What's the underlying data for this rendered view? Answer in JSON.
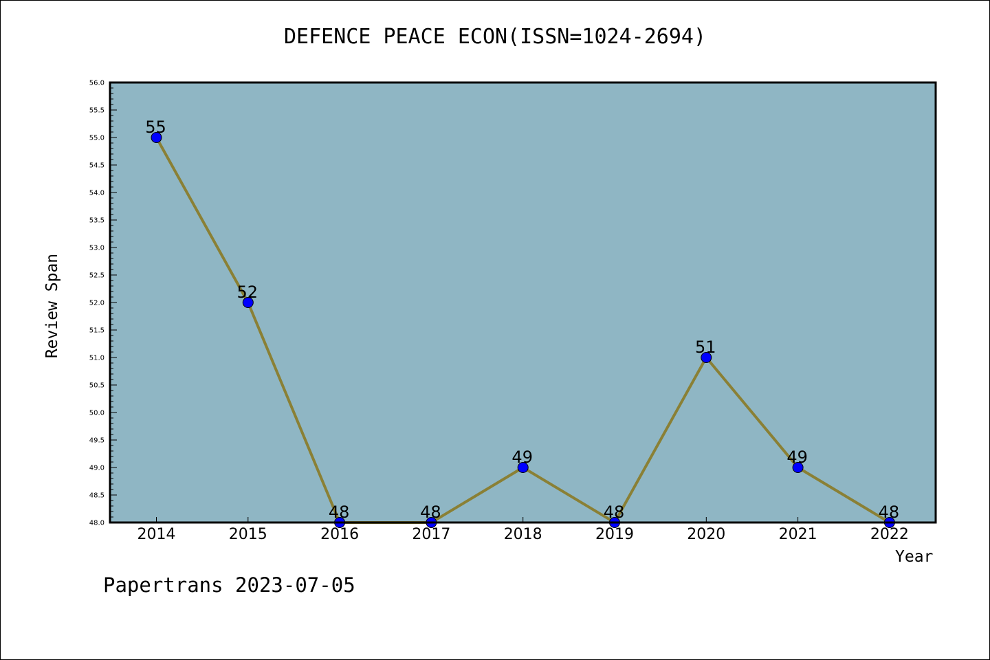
{
  "chart_data": {
    "type": "line",
    "title": "DEFENCE PEACE ECON(ISSN=1024-2694)",
    "xlabel": "Year",
    "ylabel": "Review Span",
    "categories": [
      "2014",
      "2015",
      "2016",
      "2017",
      "2018",
      "2019",
      "2020",
      "2021",
      "2022"
    ],
    "series": [
      {
        "values": [
          55,
          52,
          48,
          48,
          49,
          48,
          51,
          49,
          48
        ]
      }
    ],
    "data_labels": [
      "55",
      "52",
      "48",
      "48",
      "49",
      "48",
      "51",
      "49",
      "48"
    ],
    "ylim": [
      48.0,
      56.0
    ],
    "y_ticks": [
      "48.0",
      "48.5",
      "49.0",
      "49.5",
      "50.0",
      "50.5",
      "51.0",
      "51.5",
      "52.0",
      "52.5",
      "53.0",
      "53.5",
      "54.0",
      "54.5",
      "55.0",
      "55.5",
      "56.0"
    ],
    "grid": false,
    "colors": {
      "plot_background": "#8fb6c4",
      "line": "#8a8035",
      "marker": "#0000ff"
    }
  },
  "footer": "Papertrans 2023-07-05"
}
